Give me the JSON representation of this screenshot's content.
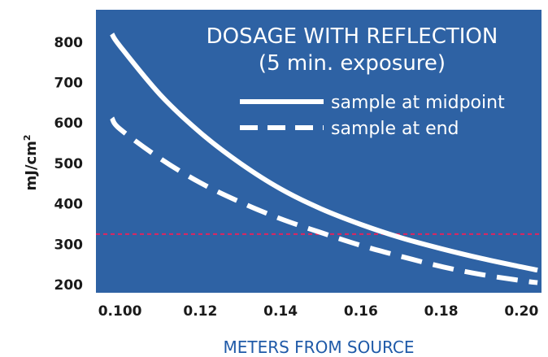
{
  "colors": {
    "plot_background": "#2e62a4",
    "curves": "#ffffff",
    "threshold_line": "#e0245e",
    "axis_title": "#1f5aa8"
  },
  "chart_data": {
    "type": "line",
    "title_line1": "DOSAGE WITH REFLECTION",
    "title_line2": "(5 min. exposure)",
    "xlabel": "METERS FROM SOURCE",
    "ylabel_main": "mJ/cm",
    "ylabel_sup": "2",
    "xlim": [
      0.094,
      0.205
    ],
    "ylim": [
      180,
      880
    ],
    "x_ticks": [
      {
        "value": 0.1,
        "label": "0.100"
      },
      {
        "value": 0.12,
        "label": "0.12"
      },
      {
        "value": 0.14,
        "label": "0.14"
      },
      {
        "value": 0.16,
        "label": "0.16"
      },
      {
        "value": 0.18,
        "label": "0.18"
      },
      {
        "value": 0.2,
        "label": "0.20"
      }
    ],
    "y_ticks": [
      {
        "value": 200,
        "label": "200"
      },
      {
        "value": 300,
        "label": "300"
      },
      {
        "value": 400,
        "label": "400"
      },
      {
        "value": 500,
        "label": "500"
      },
      {
        "value": 600,
        "label": "600"
      },
      {
        "value": 700,
        "label": "700"
      },
      {
        "value": 800,
        "label": "800"
      }
    ],
    "threshold_y": 325,
    "legend_position": "top-right",
    "series": [
      {
        "name": "sample at midpoint",
        "style": "solid",
        "x": [
          0.098,
          0.1,
          0.11,
          0.12,
          0.13,
          0.14,
          0.15,
          0.16,
          0.17,
          0.18,
          0.19,
          0.2,
          0.204
        ],
        "y": [
          820,
          790,
          670,
          576,
          500,
          437,
          388,
          349,
          316,
          289,
          265,
          244,
          236
        ]
      },
      {
        "name": "sample at end",
        "style": "dashed",
        "x": [
          0.098,
          0.1,
          0.11,
          0.12,
          0.13,
          0.14,
          0.15,
          0.16,
          0.17,
          0.18,
          0.19,
          0.2,
          0.204
        ],
        "y": [
          612,
          585,
          512,
          452,
          404,
          363,
          329,
          297,
          270,
          245,
          225,
          210,
          205
        ]
      }
    ]
  }
}
